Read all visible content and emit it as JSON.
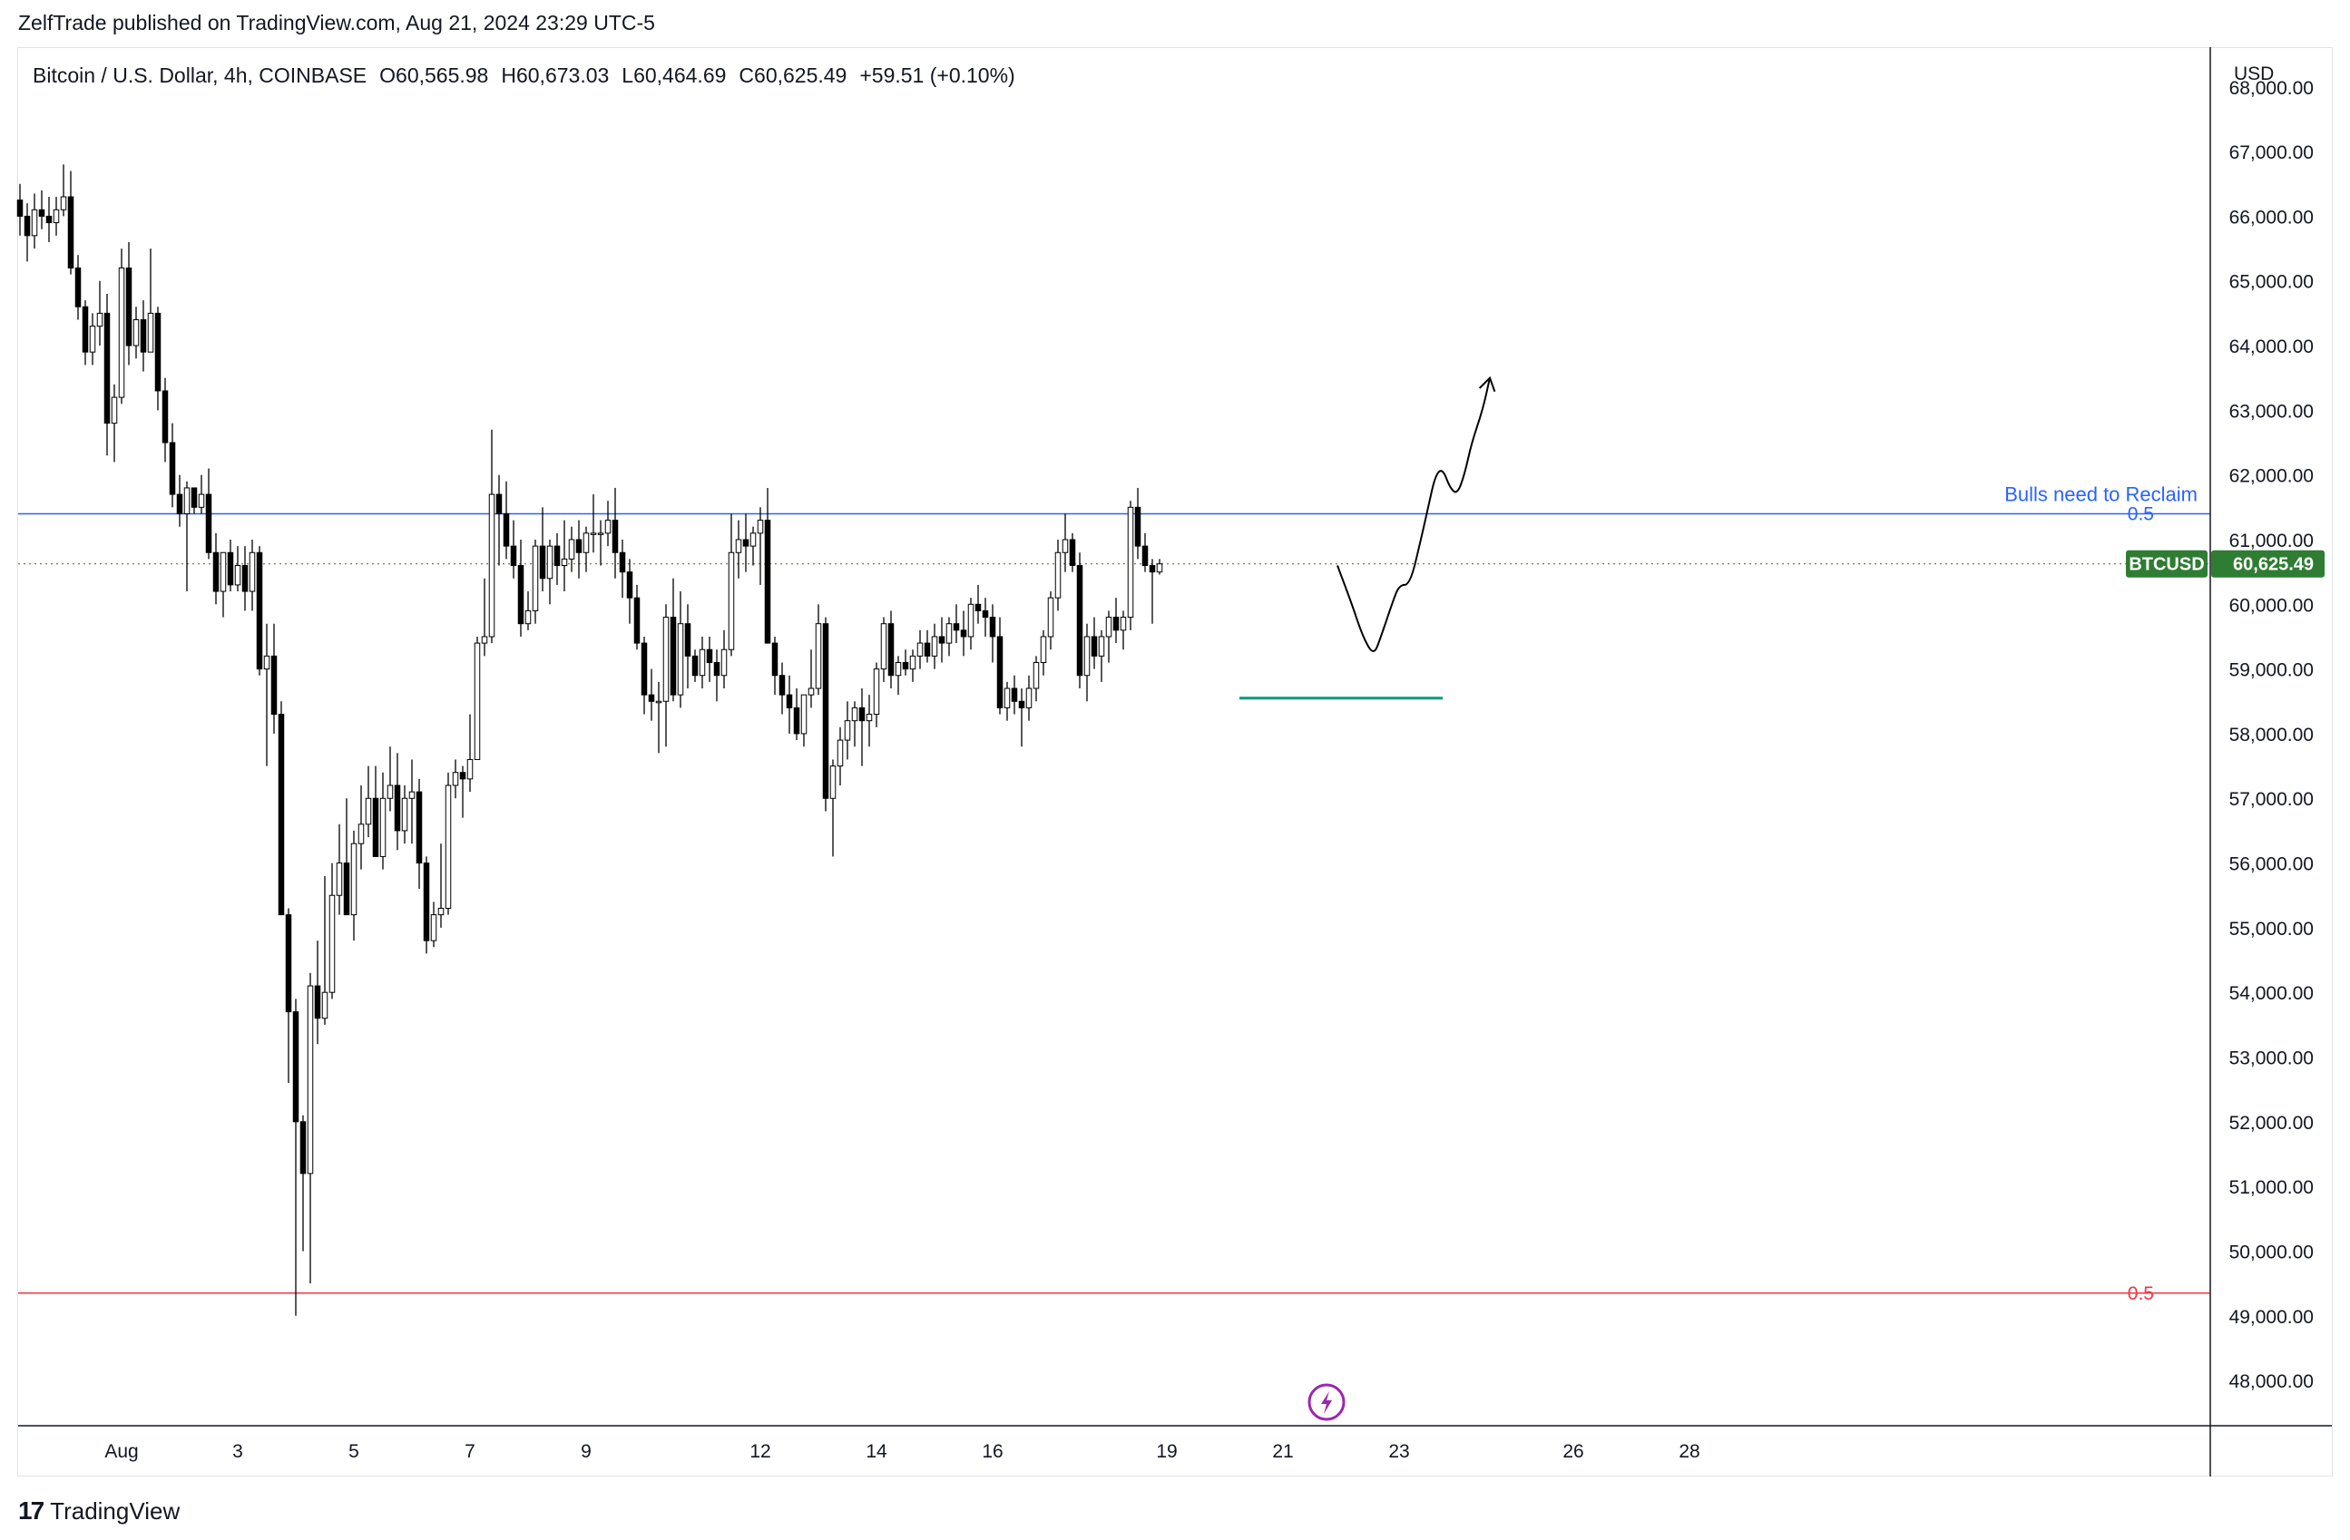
{
  "header": {
    "published_line": "ZelfTrade published on TradingView.com, Aug 21, 2024 23:29 UTC-5"
  },
  "legend": {
    "symbol": "Bitcoin / U.S. Dollar, 4h, COINBASE",
    "open": "O60,565.98",
    "high": "H60,673.03",
    "low": "L60,464.69",
    "close": "C60,625.49",
    "change": "+59.51 (+0.10%)"
  },
  "currency_label": "USD",
  "footer": {
    "logo_text": "TradingView",
    "logo_mark": "17"
  },
  "chart_data": {
    "type": "candlestick",
    "ticker": "BTCUSD",
    "last_price": 60625.49,
    "last_price_label": "60,625.49",
    "ylim": [
      47300,
      68600
    ],
    "y_ticks": [
      {
        "value": 68000,
        "label": "68,000.00"
      },
      {
        "value": 67000,
        "label": "67,000.00"
      },
      {
        "value": 66000,
        "label": "66,000.00"
      },
      {
        "value": 65000,
        "label": "65,000.00"
      },
      {
        "value": 64000,
        "label": "64,000.00"
      },
      {
        "value": 63000,
        "label": "63,000.00"
      },
      {
        "value": 62000,
        "label": "62,000.00"
      },
      {
        "value": 61000,
        "label": "61,000.00"
      },
      {
        "value": 60000,
        "label": "60,000.00"
      },
      {
        "value": 59000,
        "label": "59,000.00"
      },
      {
        "value": 58000,
        "label": "58,000.00"
      },
      {
        "value": 57000,
        "label": "57,000.00"
      },
      {
        "value": 56000,
        "label": "56,000.00"
      },
      {
        "value": 55000,
        "label": "55,000.00"
      },
      {
        "value": 54000,
        "label": "54,000.00"
      },
      {
        "value": 53000,
        "label": "53,000.00"
      },
      {
        "value": 52000,
        "label": "52,000.00"
      },
      {
        "value": 51000,
        "label": "51,000.00"
      },
      {
        "value": 50000,
        "label": "50,000.00"
      },
      {
        "value": 49000,
        "label": "49,000.00"
      },
      {
        "value": 48000,
        "label": "48,000.00"
      }
    ],
    "x_ticks": [
      {
        "index": 14,
        "label": "Aug"
      },
      {
        "index": 30,
        "label": "3"
      },
      {
        "index": 46,
        "label": "5"
      },
      {
        "index": 62,
        "label": "7"
      },
      {
        "index": 78,
        "label": "9"
      },
      {
        "index": 102,
        "label": "12"
      },
      {
        "index": 118,
        "label": "14"
      },
      {
        "index": 134,
        "label": "16"
      },
      {
        "index": 158,
        "label": "19"
      },
      {
        "index": 174,
        "label": "21"
      },
      {
        "index": 190,
        "label": "23"
      },
      {
        "index": 214,
        "label": "26"
      },
      {
        "index": 230,
        "label": "28"
      }
    ],
    "horizontal_lines": [
      {
        "price": 61400,
        "color": "#2962ff",
        "label": "0.5",
        "note": "Bulls need to Reclaim"
      },
      {
        "price": 49350,
        "color": "#f23645",
        "label": "0.5",
        "note": ""
      }
    ],
    "support_segment": {
      "price": 58550,
      "from_index": 168,
      "to_index": 196,
      "color": "#089981"
    },
    "projection_path": [
      [
        181.5,
        60600
      ],
      [
        183.5,
        60000
      ],
      [
        185,
        59500
      ],
      [
        186.5,
        59200
      ],
      [
        187.5,
        59500
      ],
      [
        189,
        60000
      ],
      [
        190,
        60300
      ],
      [
        191.5,
        60300
      ],
      [
        193,
        61000
      ],
      [
        194,
        61500
      ],
      [
        195,
        62000
      ],
      [
        196,
        62100
      ],
      [
        197,
        61800
      ],
      [
        198,
        61700
      ],
      [
        199,
        62000
      ],
      [
        200,
        62500
      ],
      [
        201.5,
        63000
      ],
      [
        202.5,
        63500
      ]
    ],
    "event_marker_index": 180,
    "candles": [
      [
        66250,
        66500,
        65700,
        66000
      ],
      [
        66000,
        66200,
        65300,
        65700
      ],
      [
        65700,
        66350,
        65500,
        66100
      ],
      [
        66100,
        66400,
        65800,
        66000
      ],
      [
        66000,
        66300,
        65600,
        65900
      ],
      [
        65900,
        66300,
        65700,
        66100
      ],
      [
        66100,
        66800,
        66000,
        66300
      ],
      [
        66300,
        66700,
        65100,
        65200
      ],
      [
        65200,
        65400,
        64400,
        64600
      ],
      [
        64600,
        64700,
        63700,
        63900
      ],
      [
        63900,
        64500,
        63700,
        64300
      ],
      [
        64300,
        65000,
        64000,
        64500
      ],
      [
        64500,
        64800,
        62300,
        62800
      ],
      [
        62800,
        63400,
        62200,
        63200
      ],
      [
        63200,
        65500,
        63100,
        65200
      ],
      [
        65200,
        65600,
        63700,
        64000
      ],
      [
        64000,
        64600,
        63800,
        64400
      ],
      [
        64400,
        64700,
        63600,
        63900
      ],
      [
        63900,
        65500,
        63900,
        64500
      ],
      [
        64500,
        64600,
        63000,
        63300
      ],
      [
        63300,
        63500,
        62200,
        62500
      ],
      [
        62500,
        62800,
        61500,
        61700
      ],
      [
        61700,
        62000,
        61200,
        61400
      ],
      [
        61400,
        61900,
        60200,
        61800
      ],
      [
        61800,
        61800,
        61400,
        61500
      ],
      [
        61500,
        62000,
        61400,
        61700
      ],
      [
        61700,
        62100,
        60700,
        60800
      ],
      [
        60800,
        61100,
        60000,
        60200
      ],
      [
        60200,
        60600,
        59800,
        60800
      ],
      [
        60800,
        61000,
        60200,
        60300
      ],
      [
        60300,
        60900,
        60200,
        60600
      ],
      [
        60600,
        60900,
        59900,
        60200
      ],
      [
        60200,
        61000,
        59900,
        60800
      ],
      [
        60800,
        60900,
        58900,
        59000
      ],
      [
        59000,
        59700,
        57500,
        59200
      ],
      [
        59200,
        59700,
        58000,
        58300
      ],
      [
        58300,
        58500,
        55200,
        55200
      ],
      [
        55200,
        55300,
        52600,
        53700
      ],
      [
        53700,
        53900,
        49000,
        52000
      ],
      [
        52000,
        52100,
        50000,
        51200
      ],
      [
        51200,
        54300,
        49500,
        54100
      ],
      [
        54100,
        54800,
        53200,
        53600
      ],
      [
        53600,
        55800,
        53500,
        54000
      ],
      [
        54000,
        56000,
        53900,
        55500
      ],
      [
        55500,
        56600,
        55200,
        56000
      ],
      [
        56000,
        57000,
        55300,
        55200
      ],
      [
        55200,
        56500,
        54800,
        56300
      ],
      [
        56300,
        57200,
        55900,
        56600
      ],
      [
        56600,
        57500,
        56400,
        57000
      ],
      [
        57000,
        57500,
        56100,
        56100
      ],
      [
        56100,
        57400,
        55900,
        57000
      ],
      [
        57000,
        57800,
        56800,
        57200
      ],
      [
        57200,
        57700,
        56200,
        56500
      ],
      [
        56500,
        57200,
        56300,
        57000
      ],
      [
        57000,
        57600,
        56300,
        57100
      ],
      [
        57100,
        57300,
        55600,
        56000
      ],
      [
        56000,
        56100,
        54600,
        54800
      ],
      [
        54800,
        55400,
        54700,
        55200
      ],
      [
        55200,
        56300,
        55000,
        55300
      ],
      [
        55300,
        57400,
        55200,
        57200
      ],
      [
        57200,
        57600,
        57000,
        57400
      ],
      [
        57400,
        57500,
        56700,
        57300
      ],
      [
        57300,
        58300,
        57100,
        57600
      ],
      [
        57600,
        59500,
        57600,
        59400
      ],
      [
        59400,
        60400,
        59200,
        59500
      ],
      [
        59500,
        62700,
        59400,
        61700
      ],
      [
        61700,
        62000,
        60600,
        61400
      ],
      [
        61400,
        61900,
        60700,
        60900
      ],
      [
        60900,
        61300,
        60400,
        60600
      ],
      [
        60600,
        61000,
        59500,
        59700
      ],
      [
        59700,
        60200,
        59600,
        59900
      ],
      [
        59900,
        61000,
        59700,
        60900
      ],
      [
        60900,
        61500,
        60200,
        60400
      ],
      [
        60400,
        61000,
        60000,
        60900
      ],
      [
        60900,
        61100,
        60300,
        60600
      ],
      [
        60600,
        61300,
        60200,
        60700
      ],
      [
        60700,
        61200,
        60500,
        61000
      ],
      [
        61000,
        61300,
        60400,
        60800
      ],
      [
        60800,
        61200,
        60500,
        61100
      ],
      [
        61100,
        61700,
        60800,
        61100
      ],
      [
        61100,
        61300,
        60600,
        61100
      ],
      [
        61100,
        61600,
        60900,
        61300
      ],
      [
        61300,
        61800,
        60400,
        60800
      ],
      [
        60800,
        61000,
        60100,
        60500
      ],
      [
        60500,
        60700,
        59700,
        60100
      ],
      [
        60100,
        60300,
        59300,
        59400
      ],
      [
        59400,
        59500,
        58300,
        58600
      ],
      [
        58600,
        59000,
        58200,
        58500
      ],
      [
        58500,
        58800,
        57700,
        58500
      ],
      [
        58500,
        60000,
        57800,
        59800
      ],
      [
        59800,
        60400,
        58500,
        58600
      ],
      [
        58600,
        60200,
        58400,
        59700
      ],
      [
        59700,
        60000,
        58700,
        59200
      ],
      [
        59200,
        59300,
        58800,
        58900
      ],
      [
        58900,
        59500,
        58700,
        59300
      ],
      [
        59300,
        59500,
        58800,
        59100
      ],
      [
        59100,
        59300,
        58500,
        58900
      ],
      [
        58900,
        59600,
        58700,
        59300
      ],
      [
        59300,
        61400,
        59200,
        60800
      ],
      [
        60800,
        61300,
        60400,
        61000
      ],
      [
        61000,
        61400,
        60500,
        60900
      ],
      [
        60900,
        61200,
        60600,
        61100
      ],
      [
        61100,
        61500,
        60300,
        61300
      ],
      [
        61300,
        61800,
        59400,
        59400
      ],
      [
        59400,
        59500,
        58600,
        58900
      ],
      [
        58900,
        59100,
        58300,
        58600
      ],
      [
        58600,
        58900,
        58000,
        58400
      ],
      [
        58400,
        58700,
        57900,
        58000
      ],
      [
        58000,
        58600,
        57800,
        58600
      ],
      [
        58600,
        59300,
        58400,
        58700
      ],
      [
        58700,
        60000,
        58600,
        59700
      ],
      [
        59700,
        59800,
        56800,
        57000
      ],
      [
        57000,
        57600,
        56100,
        57500
      ],
      [
        57500,
        58100,
        57200,
        57900
      ],
      [
        57900,
        58500,
        57600,
        58200
      ],
      [
        58200,
        58500,
        57800,
        58400
      ],
      [
        58400,
        58700,
        57500,
        58200
      ],
      [
        58200,
        58600,
        57800,
        58300
      ],
      [
        58300,
        59100,
        58100,
        59000
      ],
      [
        59000,
        59800,
        58800,
        59700
      ],
      [
        59700,
        59900,
        58700,
        58900
      ],
      [
        58900,
        59200,
        58600,
        59100
      ],
      [
        59100,
        59300,
        58900,
        59000
      ],
      [
        59000,
        59300,
        58800,
        59200
      ],
      [
        59200,
        59600,
        59000,
        59400
      ],
      [
        59400,
        59600,
        59100,
        59200
      ],
      [
        59200,
        59700,
        59000,
        59500
      ],
      [
        59500,
        59800,
        59100,
        59400
      ],
      [
        59400,
        59800,
        59200,
        59700
      ],
      [
        59700,
        60000,
        59400,
        59600
      ],
      [
        59600,
        59900,
        59200,
        59500
      ],
      [
        59500,
        60100,
        59300,
        60000
      ],
      [
        60000,
        60300,
        59700,
        59900
      ],
      [
        59900,
        60100,
        59500,
        59800
      ],
      [
        59800,
        60000,
        59100,
        59500
      ],
      [
        59500,
        59800,
        58300,
        58400
      ],
      [
        58400,
        58800,
        58200,
        58700
      ],
      [
        58700,
        58900,
        58300,
        58500
      ],
      [
        58500,
        58700,
        57800,
        58400
      ],
      [
        58400,
        58900,
        58200,
        58700
      ],
      [
        58700,
        59200,
        58500,
        59100
      ],
      [
        59100,
        59600,
        58900,
        59500
      ],
      [
        59500,
        60200,
        59300,
        60100
      ],
      [
        60100,
        61000,
        59900,
        60800
      ],
      [
        60800,
        61400,
        60500,
        61000
      ],
      [
        61000,
        61100,
        60500,
        60600
      ],
      [
        60600,
        60800,
        58700,
        58900
      ],
      [
        58900,
        59700,
        58500,
        59500
      ],
      [
        59500,
        59800,
        59000,
        59200
      ],
      [
        59200,
        59600,
        58800,
        59500
      ],
      [
        59500,
        59900,
        59100,
        59800
      ],
      [
        59800,
        60100,
        59400,
        59600
      ],
      [
        59600,
        59900,
        59300,
        59800
      ],
      [
        59800,
        61600,
        59600,
        61500
      ],
      [
        61500,
        61800,
        60700,
        60900
      ],
      [
        60900,
        61100,
        60500,
        60600
      ],
      [
        60600,
        60700,
        59700,
        60500
      ],
      [
        60500,
        60700,
        60460,
        60625
      ]
    ]
  }
}
